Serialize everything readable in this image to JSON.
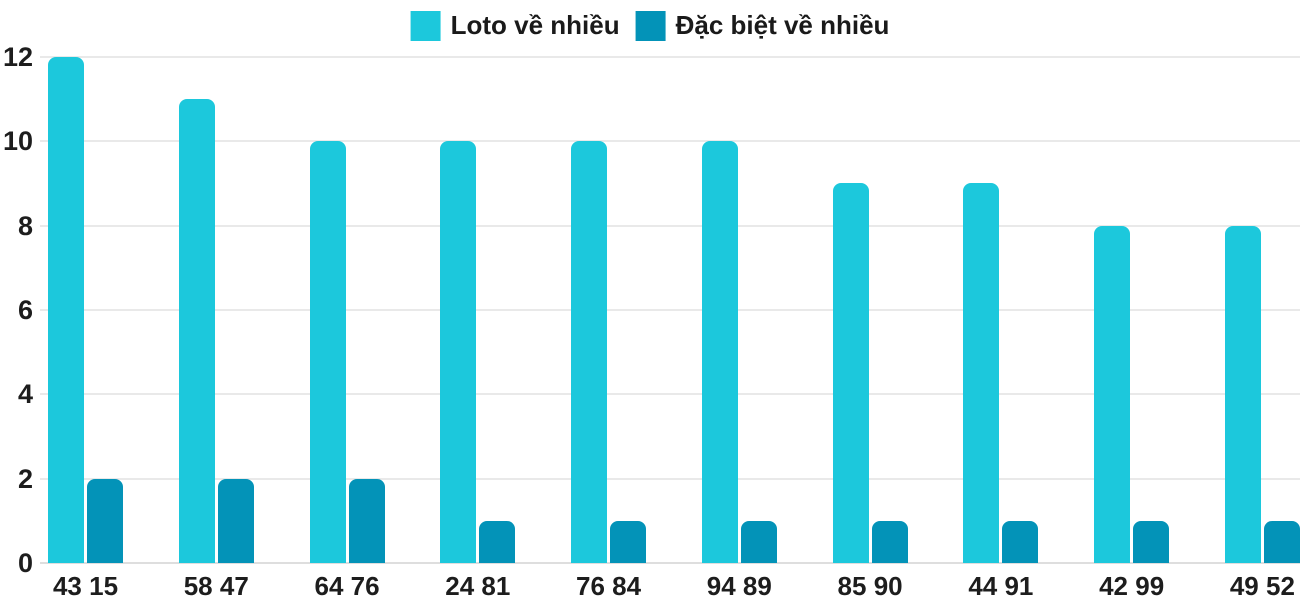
{
  "chart_data": {
    "type": "bar",
    "title": "",
    "xlabel": "",
    "ylabel": "",
    "categories": [
      "43 15",
      "58 47",
      "64 76",
      "24 81",
      "76 84",
      "94 89",
      "85 90",
      "44 91",
      "42 99",
      "49 52"
    ],
    "series": [
      {
        "name": "Loto về nhiều",
        "color": "#1cc8dc",
        "values": [
          12,
          11,
          10,
          10,
          10,
          10,
          9,
          9,
          8,
          8
        ]
      },
      {
        "name": "Đặc biệt về nhiều",
        "color": "#0393b8",
        "values": [
          2,
          2,
          2,
          1,
          1,
          1,
          1,
          1,
          1,
          1
        ]
      }
    ],
    "ylim": [
      0,
      12
    ],
    "yticks": [
      0,
      2,
      4,
      6,
      8,
      10,
      12
    ],
    "grid": true,
    "legend_position": "top-center"
  },
  "colors": {
    "series_loto": "#1cc8dc",
    "series_dac_biet": "#0393b8",
    "gridline": "#e9e9e9",
    "axis_text": "#1d1d1d",
    "background": "#ffffff"
  }
}
